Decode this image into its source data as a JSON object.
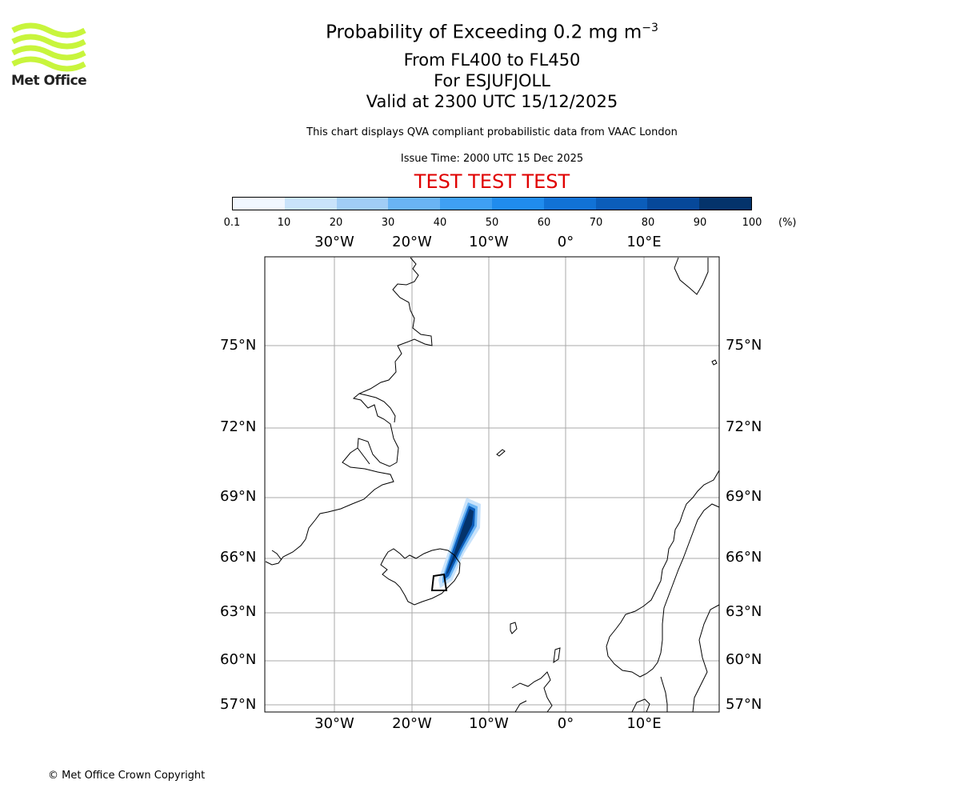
{
  "logo": {
    "text": "Met Office",
    "color": "#c8f53c"
  },
  "title": {
    "line1_main": "Probability of Exceeding 0.2 mg m",
    "line1_sup": "−3",
    "line2": "From FL400 to FL450",
    "line3": "For ESJUFJOLL",
    "line4": "Valid at 2300 UTC 15/12/2025"
  },
  "subtitle": "This chart displays QVA compliant probabilistic data from VAAC London",
  "issue_time": "Issue Time: 2000 UTC 15 Dec 2025",
  "test_banner": "TEST TEST TEST",
  "colorbar": {
    "ticks": [
      "0.1",
      "10",
      "20",
      "30",
      "40",
      "50",
      "60",
      "70",
      "80",
      "90",
      "100"
    ],
    "unit": "(%)",
    "colors": [
      "#f1f7ff",
      "#c9e3fb",
      "#a1cdf6",
      "#6ab4f4",
      "#3fa0f3",
      "#208cee",
      "#1172d6",
      "#0b5dba",
      "#06489a",
      "#04336b"
    ]
  },
  "map": {
    "lon_labels": [
      "30°W",
      "20°W",
      "10°W",
      "0°",
      "10°E"
    ],
    "lat_labels": [
      "75°N",
      "72°N",
      "69°N",
      "66°N",
      "63°N",
      "60°N",
      "57°N"
    ],
    "gridline_color": "#aaaaaa"
  },
  "plume": {
    "source": "ESJUFJOLL",
    "max_probability_band": "90-100"
  },
  "copyright": "© Met Office Crown Copyright"
}
